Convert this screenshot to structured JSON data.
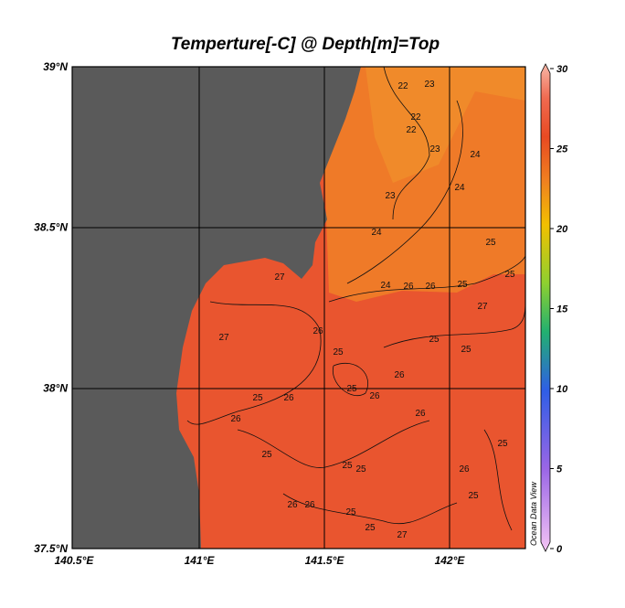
{
  "title": "Temperture[-C] @ Depth[m]=Top",
  "x_axis": {
    "ticks": [
      "140.5°E",
      "141°E",
      "141.5°E",
      "142°E"
    ]
  },
  "y_axis": {
    "ticks": [
      "39°N",
      "38.5°N",
      "38°N",
      "37.5°N"
    ]
  },
  "colorbar": {
    "range": [
      0,
      30
    ],
    "ticks": [
      0,
      5,
      10,
      15,
      20,
      25,
      30
    ]
  },
  "watermark": "Ocean Data View",
  "contour_labels": [
    22,
    22,
    22,
    23,
    23,
    23,
    24,
    24,
    24,
    24,
    26,
    26,
    25,
    25,
    25,
    27,
    27,
    27,
    26,
    25,
    25,
    25,
    26,
    25,
    26,
    26,
    25,
    26,
    26,
    25,
    25,
    25,
    26,
    25,
    25,
    26,
    26,
    25,
    25,
    27
  ]
}
